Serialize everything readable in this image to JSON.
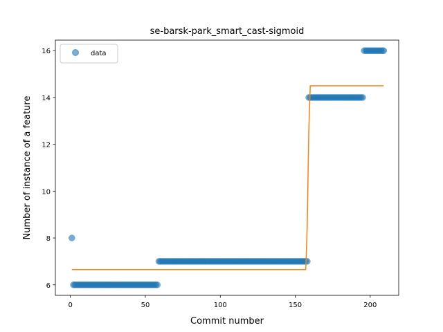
{
  "chart_data": {
    "type": "scatter",
    "title": "se-barsk-park_smart_cast-sigmoid",
    "xlabel": "Commit number",
    "ylabel": "Number of instance of a feature",
    "xlim": [
      -10,
      219
    ],
    "ylim": [
      5.55,
      16.45
    ],
    "xticks": [
      0,
      50,
      100,
      150,
      200
    ],
    "yticks": [
      6,
      8,
      10,
      12,
      14,
      16
    ],
    "grid": false,
    "legend_position": "upper-left",
    "series": [
      {
        "name": "data",
        "kind": "scatter",
        "color": "#1f77b4",
        "opacity": 0.6,
        "segments": [
          {
            "x_start": 1,
            "x_end": 1,
            "y": 8
          },
          {
            "x_start": 2,
            "x_end": 58,
            "y": 6
          },
          {
            "x_start": 59,
            "x_end": 158,
            "y": 7
          },
          {
            "x_start": 159,
            "x_end": 195,
            "y": 14
          },
          {
            "x_start": 196,
            "x_end": 209,
            "y": 16
          }
        ]
      },
      {
        "kind": "line",
        "color": "#ff7f0e",
        "points": [
          {
            "x": 1,
            "y": 6.65
          },
          {
            "x": 157,
            "y": 6.65
          },
          {
            "x": 158,
            "y": 8.5
          },
          {
            "x": 159,
            "y": 12.5
          },
          {
            "x": 160,
            "y": 14.5
          },
          {
            "x": 209,
            "y": 14.5
          }
        ]
      }
    ]
  }
}
